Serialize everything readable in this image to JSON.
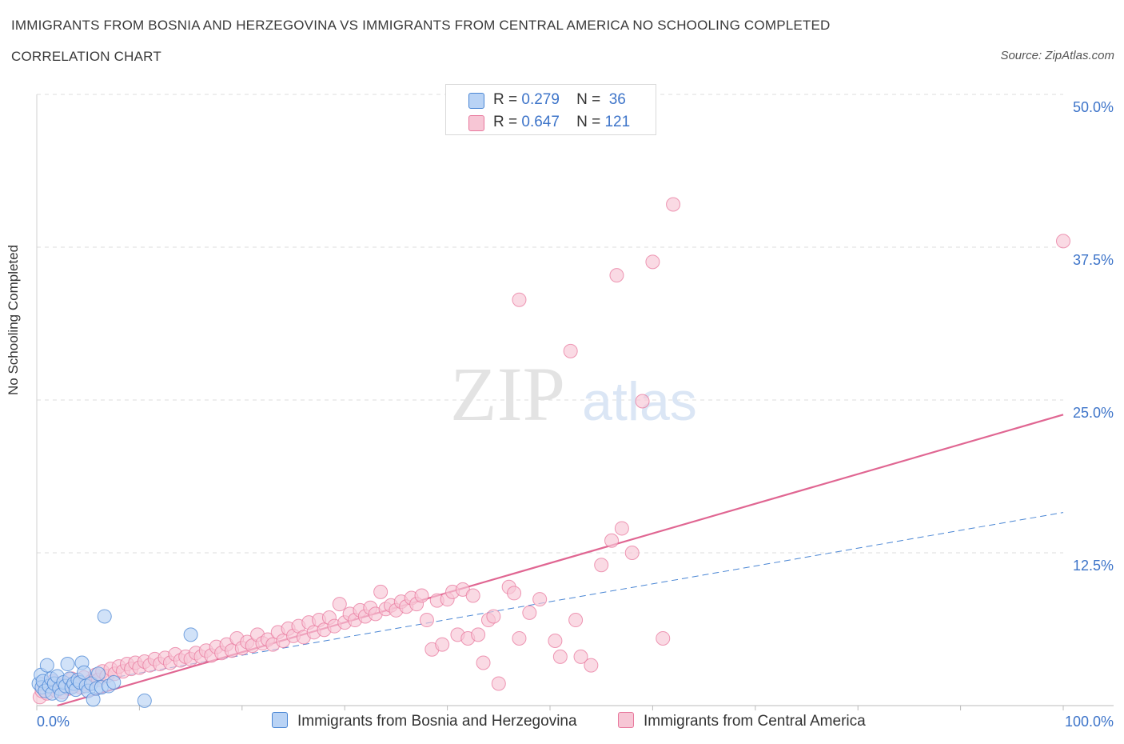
{
  "header": {
    "title": "IMMIGRANTS FROM BOSNIA AND HERZEGOVINA VS IMMIGRANTS FROM CENTRAL AMERICA NO SCHOOLING COMPLETED",
    "subtitle": "CORRELATION CHART",
    "source": "Source: ZipAtlas.com"
  },
  "legend": {
    "r_label": "R =",
    "n_label": "N =",
    "series": [
      {
        "name": "Immigrants from Bosnia and Herzegovina",
        "r": "0.279",
        "n": "36"
      },
      {
        "name": "Immigrants from Central America",
        "r": "0.647",
        "n": "121"
      }
    ]
  },
  "watermark": {
    "zip": "ZIP",
    "atlas": "atlas"
  },
  "colors": {
    "blue_fill": "#b9d3f5",
    "blue_stroke": "#4a86d4",
    "blue_line": "#4a86d4",
    "pink_fill": "#f7c6d5",
    "pink_stroke": "#e8789d",
    "pink_line": "#e06692",
    "axis_label": "#3d74c9",
    "grid": "#dddddd"
  },
  "chart_data": {
    "type": "scatter",
    "title": "IMMIGRANTS FROM BOSNIA AND HERZEGOVINA VS IMMIGRANTS FROM CENTRAL AMERICA NO SCHOOLING COMPLETED",
    "xlabel": "",
    "ylabel": "No Schooling Completed",
    "xlim": [
      0,
      100
    ],
    "ylim": [
      0,
      50
    ],
    "x_tick_labels": [
      "0.0%",
      "100.0%"
    ],
    "y_ticks": [
      12.5,
      25.0,
      37.5,
      50.0
    ],
    "y_tick_labels": [
      "12.5%",
      "25.0%",
      "37.5%",
      "50.0%"
    ],
    "series": [
      {
        "name": "Immigrants from Bosnia and Herzegovina",
        "color": "#4a86d4",
        "trend": {
          "x": [
            0,
            100
          ],
          "y": [
            1.2,
            15.8
          ],
          "style": "dashed"
        },
        "points": [
          [
            0.2,
            1.8
          ],
          [
            0.4,
            2.5
          ],
          [
            0.5,
            1.5
          ],
          [
            0.6,
            2.0
          ],
          [
            0.8,
            1.2
          ],
          [
            1.0,
            3.3
          ],
          [
            1.2,
            1.6
          ],
          [
            1.4,
            2.2
          ],
          [
            1.5,
            1.0
          ],
          [
            1.7,
            1.8
          ],
          [
            2.0,
            2.4
          ],
          [
            2.2,
            1.4
          ],
          [
            2.4,
            0.9
          ],
          [
            2.6,
            1.9
          ],
          [
            2.8,
            1.6
          ],
          [
            3.0,
            3.4
          ],
          [
            3.2,
            2.2
          ],
          [
            3.4,
            1.5
          ],
          [
            3.6,
            1.8
          ],
          [
            3.8,
            1.3
          ],
          [
            4.0,
            2.1
          ],
          [
            4.2,
            1.9
          ],
          [
            4.4,
            3.5
          ],
          [
            4.6,
            2.7
          ],
          [
            4.8,
            1.6
          ],
          [
            5.0,
            1.2
          ],
          [
            5.3,
            1.8
          ],
          [
            5.5,
            0.5
          ],
          [
            5.8,
            1.4
          ],
          [
            6.0,
            2.6
          ],
          [
            6.3,
            1.5
          ],
          [
            6.6,
            7.3
          ],
          [
            7.0,
            1.6
          ],
          [
            7.5,
            1.9
          ],
          [
            10.5,
            0.4
          ],
          [
            15.0,
            5.8
          ]
        ]
      },
      {
        "name": "Immigrants from Central America",
        "color": "#e06692",
        "trend": {
          "x": [
            2,
            100
          ],
          "y": [
            0.0,
            23.8
          ],
          "style": "solid"
        },
        "points": [
          [
            0.3,
            0.7
          ],
          [
            0.5,
            1.2
          ],
          [
            0.7,
            1.8
          ],
          [
            1.0,
            1.0
          ],
          [
            1.3,
            1.5
          ],
          [
            1.6,
            2.0
          ],
          [
            1.9,
            1.2
          ],
          [
            2.2,
            1.6
          ],
          [
            2.5,
            1.1
          ],
          [
            2.8,
            1.8
          ],
          [
            3.1,
            1.4
          ],
          [
            3.4,
            2.2
          ],
          [
            3.7,
            1.6
          ],
          [
            4.0,
            1.9
          ],
          [
            4.3,
            1.5
          ],
          [
            4.6,
            2.3
          ],
          [
            5.0,
            1.7
          ],
          [
            5.3,
            2.0
          ],
          [
            5.7,
            2.5
          ],
          [
            6.0,
            2.1
          ],
          [
            6.4,
            2.8
          ],
          [
            6.8,
            2.4
          ],
          [
            7.2,
            3.0
          ],
          [
            7.6,
            2.6
          ],
          [
            8.0,
            3.2
          ],
          [
            8.4,
            2.8
          ],
          [
            8.8,
            3.4
          ],
          [
            9.2,
            3.0
          ],
          [
            9.6,
            3.5
          ],
          [
            10.0,
            3.1
          ],
          [
            10.5,
            3.6
          ],
          [
            11.0,
            3.3
          ],
          [
            11.5,
            3.8
          ],
          [
            12.0,
            3.4
          ],
          [
            12.5,
            3.9
          ],
          [
            13.0,
            3.5
          ],
          [
            13.5,
            4.2
          ],
          [
            14.0,
            3.7
          ],
          [
            14.5,
            4.0
          ],
          [
            15.0,
            3.8
          ],
          [
            15.5,
            4.3
          ],
          [
            16.0,
            4.0
          ],
          [
            16.5,
            4.5
          ],
          [
            17.0,
            4.1
          ],
          [
            17.5,
            4.8
          ],
          [
            18.0,
            4.3
          ],
          [
            18.5,
            5.0
          ],
          [
            19.0,
            4.5
          ],
          [
            19.5,
            5.5
          ],
          [
            20.0,
            4.7
          ],
          [
            20.5,
            5.2
          ],
          [
            21.0,
            4.9
          ],
          [
            21.5,
            5.8
          ],
          [
            22.0,
            5.1
          ],
          [
            22.5,
            5.4
          ],
          [
            23.0,
            5.0
          ],
          [
            23.5,
            6.0
          ],
          [
            24.0,
            5.3
          ],
          [
            24.5,
            6.3
          ],
          [
            25.0,
            5.7
          ],
          [
            25.5,
            6.5
          ],
          [
            26.0,
            5.6
          ],
          [
            26.5,
            6.8
          ],
          [
            27.0,
            6.0
          ],
          [
            27.5,
            7.0
          ],
          [
            28.0,
            6.2
          ],
          [
            28.5,
            7.2
          ],
          [
            29.0,
            6.5
          ],
          [
            29.5,
            8.3
          ],
          [
            30.0,
            6.8
          ],
          [
            30.5,
            7.5
          ],
          [
            31.0,
            7.0
          ],
          [
            31.5,
            7.8
          ],
          [
            32.0,
            7.3
          ],
          [
            32.5,
            8.0
          ],
          [
            33.0,
            7.5
          ],
          [
            33.5,
            9.3
          ],
          [
            34.0,
            7.9
          ],
          [
            34.5,
            8.2
          ],
          [
            35.0,
            7.8
          ],
          [
            35.5,
            8.5
          ],
          [
            36.0,
            8.1
          ],
          [
            36.5,
            8.8
          ],
          [
            37.0,
            8.3
          ],
          [
            37.5,
            9.0
          ],
          [
            38.0,
            7.0
          ],
          [
            38.5,
            4.6
          ],
          [
            39.0,
            8.6
          ],
          [
            39.5,
            5.0
          ],
          [
            40.0,
            8.7
          ],
          [
            40.5,
            9.3
          ],
          [
            41.0,
            5.8
          ],
          [
            41.5,
            9.5
          ],
          [
            42.0,
            5.5
          ],
          [
            42.5,
            9.0
          ],
          [
            43.0,
            5.8
          ],
          [
            43.5,
            3.5
          ],
          [
            44.0,
            7.0
          ],
          [
            44.5,
            7.3
          ],
          [
            45.0,
            1.8
          ],
          [
            46.0,
            9.7
          ],
          [
            46.5,
            9.2
          ],
          [
            47.0,
            5.5
          ],
          [
            48.0,
            7.6
          ],
          [
            49.0,
            8.7
          ],
          [
            50.5,
            5.3
          ],
          [
            51.0,
            4.0
          ],
          [
            52.0,
            29.0
          ],
          [
            52.5,
            7.0
          ],
          [
            53.0,
            4.0
          ],
          [
            54.0,
            3.3
          ],
          [
            55.0,
            11.5
          ],
          [
            56.0,
            13.5
          ],
          [
            57.0,
            14.5
          ],
          [
            58.0,
            12.5
          ],
          [
            59.0,
            24.9
          ],
          [
            60.0,
            36.3
          ],
          [
            61.0,
            5.5
          ],
          [
            62.0,
            41.0
          ],
          [
            47.0,
            33.2
          ],
          [
            56.5,
            35.2
          ],
          [
            100.0,
            38.0
          ]
        ]
      }
    ]
  }
}
